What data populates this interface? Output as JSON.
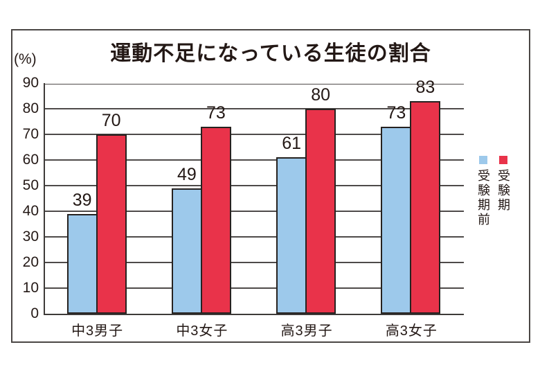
{
  "chart": {
    "title": "運動不足になっている生徒の割合",
    "unit_label": "(%)"
  },
  "chart_data": {
    "type": "bar",
    "title": "運動不足になっている生徒の割合",
    "unit_label": "(%)",
    "categories": [
      "中3男子",
      "中3女子",
      "高3男子",
      "高3女子"
    ],
    "series": [
      {
        "key": "before-exam",
        "name": "受験期前",
        "color": "#9dc9eb",
        "values": [
          39,
          49,
          61,
          73
        ]
      },
      {
        "key": "exam-period",
        "name": "受験期",
        "color": "#e9334a",
        "values": [
          70,
          73,
          80,
          83
        ]
      }
    ],
    "ylim": [
      0,
      90
    ],
    "ytick_step": 10,
    "grid": true,
    "value_labels": true,
    "legend_position": "right",
    "colors": {
      "bar_outline": "#262220",
      "gridline": "#4e4a49",
      "frame_border": "#4a4644",
      "text": "#231815"
    }
  }
}
